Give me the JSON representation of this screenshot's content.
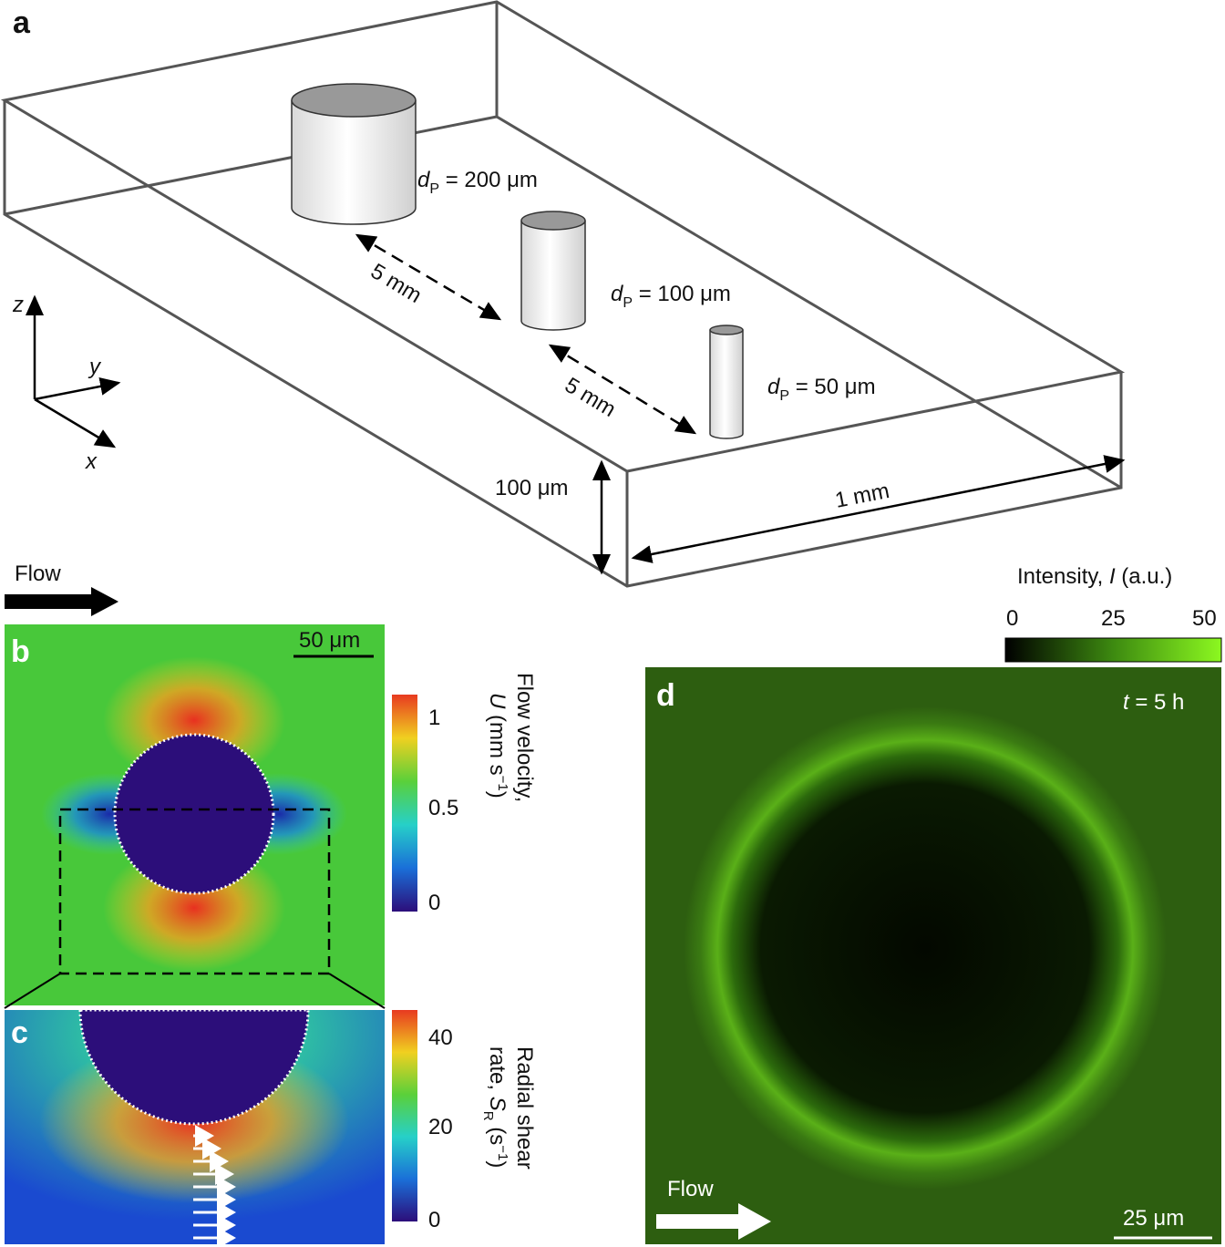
{
  "panel_a": {
    "label": "a",
    "pillars": [
      {
        "symbol": "d",
        "subscript": "P",
        "text": " = 200 μm"
      },
      {
        "symbol": "d",
        "subscript": "P",
        "text": " = 100 μm"
      },
      {
        "symbol": "d",
        "subscript": "P",
        "text": " = 50 μm"
      }
    ],
    "spacings": [
      "5 mm",
      "5 mm"
    ],
    "height": "100 μm",
    "width": "1 mm",
    "axes": [
      "z",
      "y",
      "x"
    ],
    "flow": "Flow"
  },
  "panel_b": {
    "label": "b",
    "scale_bar": "50 μm",
    "colorbar": {
      "ticks": [
        "1",
        "0.5",
        "0"
      ],
      "title_line1": "Flow velocity,",
      "symbol": "U",
      "unit_open": " (mm s",
      "exponent": "−1",
      "unit_close": ")"
    }
  },
  "panel_c": {
    "label": "c",
    "colorbar": {
      "ticks": [
        "40",
        "20",
        "0"
      ],
      "title_line1": "Radial shear",
      "line2_text": "rate, ",
      "symbol": "S",
      "subscript": "R",
      "unit_open": " (s",
      "exponent": "−1",
      "unit_close": ")"
    }
  },
  "panel_d": {
    "label": "d",
    "time_symbol": "t",
    "time_text": " = 5 h",
    "flow": "Flow",
    "scale_bar": "25 μm",
    "colorbar": {
      "title_text": "Intensity, ",
      "symbol": "I",
      "unit": " (a.u.)",
      "ticks": [
        "0",
        "25",
        "50"
      ]
    }
  }
}
